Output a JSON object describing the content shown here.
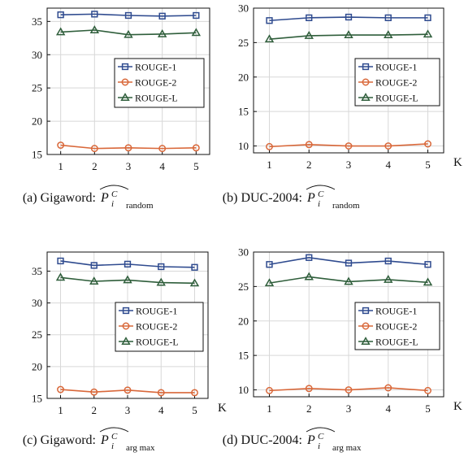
{
  "colors": {
    "rouge1": "#2f4b8f",
    "rouge2": "#d9683a",
    "rougeL": "#2f5e3b",
    "grid": "#d8d8d8"
  },
  "chart_data": [
    {
      "type": "line",
      "caption": {
        "label": "(a) Gigaword:",
        "symbol": "P",
        "sup": "C",
        "var": "i",
        "sub": "random"
      },
      "x": [
        1,
        2,
        3,
        4,
        5
      ],
      "xlabel": "",
      "ylim": [
        15,
        37
      ],
      "yticks": [
        15,
        20,
        25,
        30,
        35
      ],
      "grid": true,
      "legend": "center-right",
      "series": [
        {
          "name": "ROUGE-1",
          "marker": "square",
          "values": [
            36.0,
            36.1,
            35.9,
            35.8,
            35.9
          ]
        },
        {
          "name": "ROUGE-2",
          "marker": "circle",
          "values": [
            16.4,
            15.9,
            16.0,
            15.9,
            16.0
          ]
        },
        {
          "name": "ROUGE-L",
          "marker": "triangle",
          "values": [
            33.4,
            33.7,
            33.0,
            33.1,
            33.3
          ]
        }
      ]
    },
    {
      "type": "line",
      "caption": {
        "label": "(b) DUC-2004:",
        "symbol": "P",
        "sup": "C",
        "var": "i",
        "sub": "random"
      },
      "x": [
        1,
        2,
        3,
        4,
        5
      ],
      "xlabel": "K",
      "ylim": [
        9,
        30
      ],
      "yticks": [
        10,
        15,
        20,
        25,
        30
      ],
      "grid": true,
      "legend": "center-right",
      "series": [
        {
          "name": "ROUGE-1",
          "marker": "square",
          "values": [
            28.2,
            28.6,
            28.7,
            28.6,
            28.6
          ]
        },
        {
          "name": "ROUGE-2",
          "marker": "circle",
          "values": [
            9.9,
            10.2,
            10.0,
            10.0,
            10.3
          ]
        },
        {
          "name": "ROUGE-L",
          "marker": "triangle",
          "values": [
            25.5,
            26.0,
            26.1,
            26.1,
            26.2
          ]
        }
      ]
    },
    {
      "type": "line",
      "caption": {
        "label": "(c) Gigaword:",
        "symbol": "P",
        "sup": "C",
        "var": "i",
        "sub": "arg max"
      },
      "x": [
        1,
        2,
        3,
        4,
        5
      ],
      "xlabel": "K",
      "ylim": [
        15,
        38
      ],
      "yticks": [
        15,
        20,
        25,
        30,
        35
      ],
      "grid": true,
      "legend": "center-right",
      "series": [
        {
          "name": "ROUGE-1",
          "marker": "square",
          "values": [
            36.6,
            35.9,
            36.1,
            35.7,
            35.6
          ]
        },
        {
          "name": "ROUGE-2",
          "marker": "circle",
          "values": [
            16.4,
            16.0,
            16.3,
            15.9,
            15.9
          ]
        },
        {
          "name": "ROUGE-L",
          "marker": "triangle",
          "values": [
            34.0,
            33.4,
            33.6,
            33.2,
            33.1
          ]
        }
      ]
    },
    {
      "type": "line",
      "caption": {
        "label": "(d) DUC-2004:",
        "symbol": "P",
        "sup": "C",
        "var": "i",
        "sub": "arg max"
      },
      "x": [
        1,
        2,
        3,
        4,
        5
      ],
      "xlabel": "K",
      "ylim": [
        9,
        30
      ],
      "yticks": [
        10,
        15,
        20,
        25,
        30
      ],
      "grid": true,
      "legend": "center-right",
      "series": [
        {
          "name": "ROUGE-1",
          "marker": "square",
          "values": [
            28.2,
            29.2,
            28.4,
            28.7,
            28.2
          ]
        },
        {
          "name": "ROUGE-2",
          "marker": "circle",
          "values": [
            9.9,
            10.2,
            10.0,
            10.3,
            9.9
          ]
        },
        {
          "name": "ROUGE-L",
          "marker": "triangle",
          "values": [
            25.5,
            26.4,
            25.7,
            26.0,
            25.6
          ]
        }
      ]
    }
  ]
}
